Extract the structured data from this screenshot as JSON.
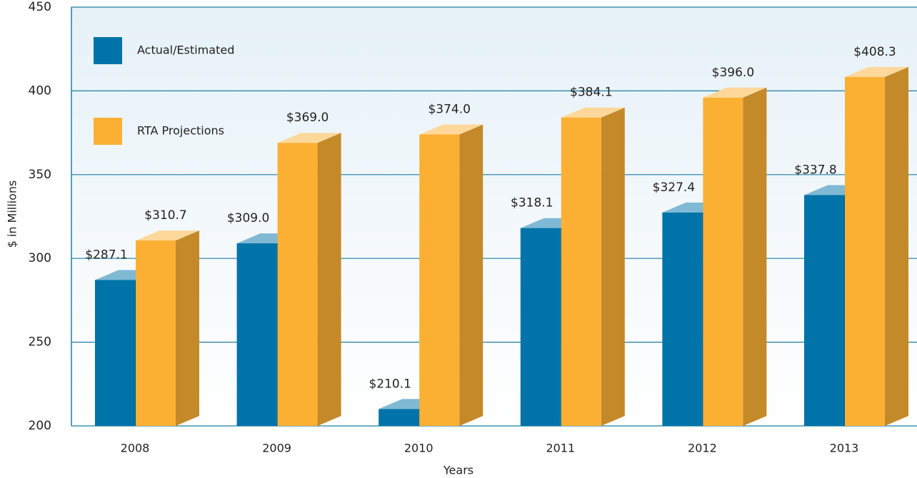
{
  "chart_data": {
    "type": "bar3d",
    "x_label": "Years",
    "y_label": "$ in Millions",
    "categories": [
      "2008",
      "2009",
      "2010",
      "2011",
      "2012",
      "2013"
    ],
    "series": [
      {
        "name": "Actual/Estimated",
        "color": "#0073a9",
        "values": [
          287.1,
          309.0,
          210.1,
          318.1,
          327.4,
          337.8
        ],
        "value_labels": [
          "$287.1",
          "$309.0",
          "$210.1",
          "$318.1",
          "$327.4",
          "$337.8"
        ]
      },
      {
        "name": "RTA Projections",
        "color": "#fbb034",
        "values": [
          310.7,
          369.0,
          374.0,
          384.1,
          396.0,
          408.3
        ],
        "value_labels": [
          "$310.7",
          "$369.0",
          "$374.0",
          "$384.1",
          "$396.0",
          "$408.3"
        ]
      }
    ],
    "ylim": [
      200,
      450
    ],
    "yticks": [
      200,
      250,
      300,
      350,
      400,
      450
    ],
    "grid": true,
    "legend": "upper left"
  }
}
